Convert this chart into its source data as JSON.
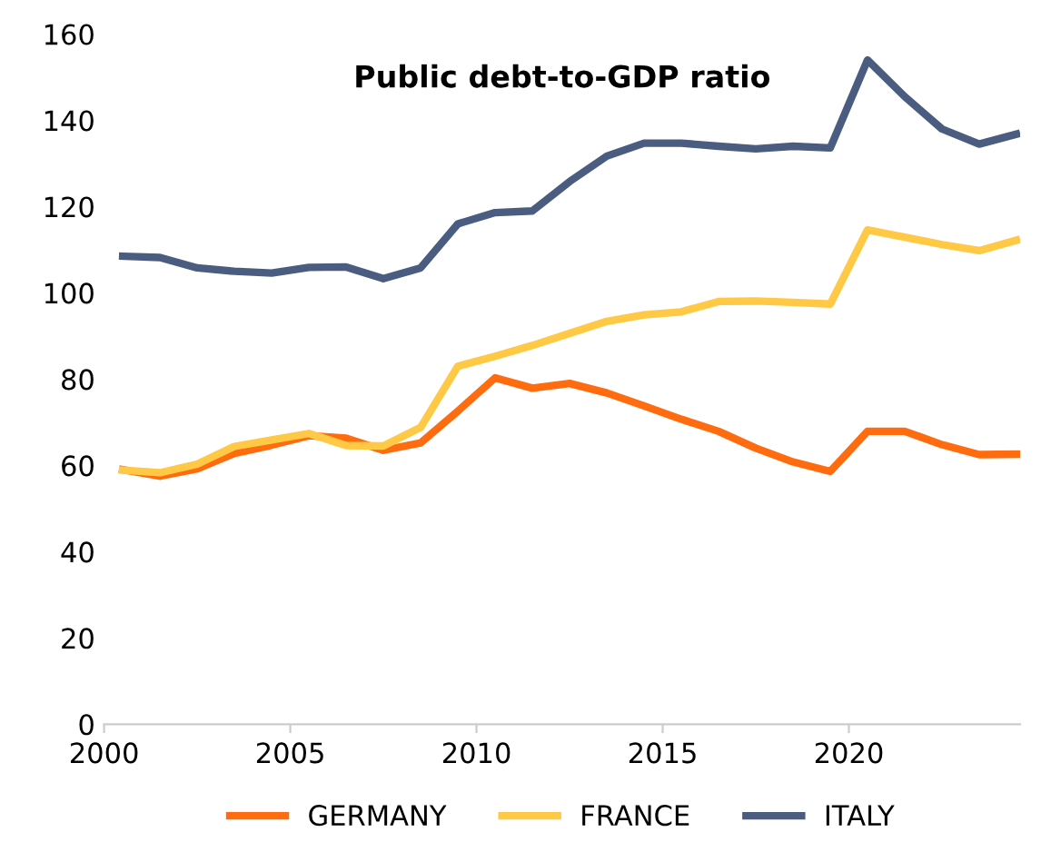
{
  "chart_data": {
    "type": "line",
    "title": "Public debt-to-GDP ratio",
    "x": [
      2000.5,
      2001.5,
      2002.5,
      2003.5,
      2004.5,
      2005.5,
      2006.5,
      2007.5,
      2008.5,
      2009.5,
      2010.5,
      2011.5,
      2012.5,
      2013.5,
      2014.5,
      2015.5,
      2016.5,
      2017.5,
      2018.5,
      2019.5,
      2020.5,
      2021.5,
      2022.5,
      2023.5,
      2024.5
    ],
    "series": [
      {
        "name": "GERMANY",
        "color": "#ff6b0f",
        "values": [
          59,
          57.5,
          59.2,
          62.8,
          64.7,
          66.9,
          66.3,
          63.5,
          65.2,
          72.6,
          80.3,
          77.9,
          79,
          76.8,
          73.8,
          70.7,
          67.9,
          64,
          60.8,
          58.6,
          67.9,
          67.9,
          64.8,
          62.5,
          62.6
        ]
      },
      {
        "name": "FRANCE",
        "color": "#ffc845",
        "values": [
          58.9,
          58.3,
          60.3,
          64.4,
          65.9,
          67.4,
          64.6,
          64.5,
          68.8,
          83,
          85.3,
          87.8,
          90.6,
          93.4,
          94.9,
          95.6,
          98,
          98.1,
          97.8,
          97.4,
          114.6,
          112.9,
          111.2,
          109.8,
          112.2
        ]
      },
      {
        "name": "ITALY",
        "color": "#4a5d80",
        "values": [
          108.5,
          108.2,
          105.8,
          105,
          104.6,
          105.9,
          106,
          103.3,
          105.8,
          116,
          118.6,
          119,
          125.8,
          131.7,
          134.7,
          134.7,
          134,
          133.4,
          134,
          133.6,
          154,
          145.5,
          138,
          134.5,
          136.8
        ]
      }
    ],
    "xlim": [
      2000,
      2024.6
    ],
    "xticks": [
      2000,
      2005,
      2010,
      2015,
      2020
    ],
    "ylim": [
      0,
      160
    ],
    "yticks": [
      0,
      20,
      40,
      60,
      80,
      100,
      120,
      140,
      160
    ],
    "grid": false,
    "legend": "bottom",
    "marker": "none",
    "line_style": "solid"
  }
}
